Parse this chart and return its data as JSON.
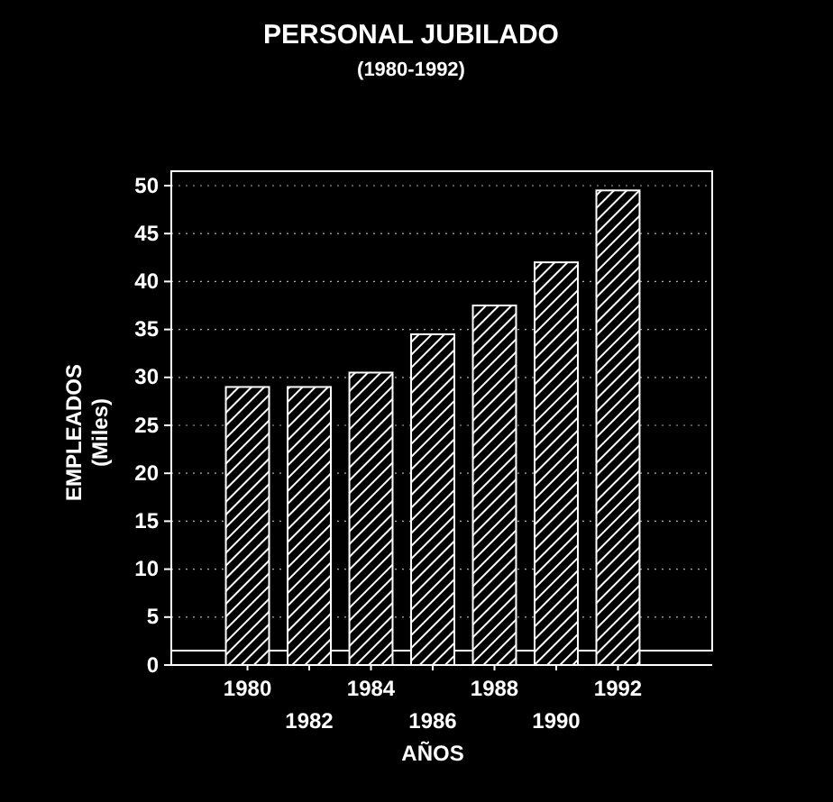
{
  "chart_data": {
    "type": "bar",
    "title": "PERSONAL JUBILADO",
    "subtitle": "(1980-1992)",
    "xlabel": "AÑOS",
    "ylabel": "EMPLEADOS\n(Miles)",
    "categories": [
      "1980",
      "1982",
      "1984",
      "1986",
      "1988",
      "1990",
      "1992"
    ],
    "values": [
      29,
      29,
      30.5,
      34.5,
      37.5,
      42,
      49.5
    ],
    "color": "#ffffff",
    "ylim": [
      0,
      50
    ],
    "yticks": [
      0,
      5,
      10,
      15,
      20,
      25,
      30,
      35,
      40,
      45,
      50
    ],
    "grid": "y"
  }
}
